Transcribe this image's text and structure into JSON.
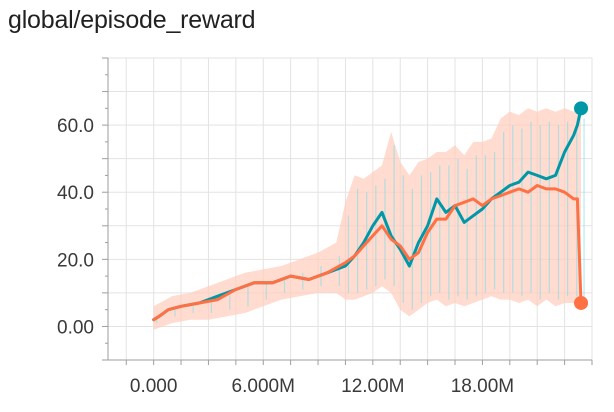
{
  "title": "global/episode_reward",
  "colors": {
    "teal": "#0097a7",
    "orange": "#ff7043",
    "teal_raw": "#80deea",
    "orange_raw": "#ffccbc",
    "grid": "#e3e3e3",
    "axis": "#9e9e9e"
  },
  "chart_data": {
    "type": "line",
    "title": "global/episode_reward",
    "xlabel": "",
    "ylabel": "",
    "xlim": [
      -2500000,
      24000000
    ],
    "ylim": [
      -10,
      80
    ],
    "x_ticks": [
      0,
      6000000,
      12000000,
      18000000
    ],
    "x_tick_labels": [
      "0.000",
      "6.000M",
      "12.00M",
      "18.00M"
    ],
    "y_ticks": [
      0,
      20,
      40,
      60
    ],
    "y_tick_labels": [
      "0.00",
      "20.0",
      "40.0",
      "60.0"
    ],
    "grid": true,
    "legend": "none",
    "series": [
      {
        "color": "#0097a7",
        "raw_color": "#80deea",
        "end_marker": true,
        "x": [
          0,
          300000,
          800000,
          1500000,
          2500000,
          3500000,
          4500000,
          5500000,
          6500000,
          7500000,
          8500000,
          9500000,
          10500000,
          11000000,
          11500000,
          12000000,
          12500000,
          13000000,
          13500000,
          14000000,
          14500000,
          15000000,
          15500000,
          16000000,
          16500000,
          17000000,
          17500000,
          18000000,
          18500000,
          19000000,
          19500000,
          20000000,
          20500000,
          21000000,
          21500000,
          22000000,
          22500000,
          23000000,
          23200000,
          23400000
        ],
        "y": [
          2,
          3,
          5,
          6,
          7,
          9,
          11,
          13,
          13,
          15,
          14,
          16,
          18,
          21,
          25,
          30,
          34,
          27,
          23,
          18,
          25,
          30,
          38,
          34,
          36,
          31,
          33,
          35,
          38,
          40,
          42,
          43,
          46,
          45,
          44,
          45,
          52,
          57,
          60,
          65
        ]
      },
      {
        "color": "#ff7043",
        "raw_color": "#ffccbc",
        "end_marker": true,
        "x": [
          0,
          300000,
          800000,
          1500000,
          2500000,
          3500000,
          4500000,
          5500000,
          6500000,
          7500000,
          8500000,
          9500000,
          10500000,
          11000000,
          11500000,
          12000000,
          12500000,
          13000000,
          13500000,
          14000000,
          14500000,
          15000000,
          15500000,
          16000000,
          16500000,
          17000000,
          17500000,
          18000000,
          18500000,
          19000000,
          19500000,
          20000000,
          20500000,
          21000000,
          21500000,
          22000000,
          22500000,
          23000000,
          23200000,
          23400000
        ],
        "y": [
          2,
          3,
          5,
          6,
          7,
          8,
          11,
          13,
          13,
          15,
          14,
          16,
          19,
          21,
          24,
          27,
          30,
          26,
          24,
          20,
          22,
          28,
          32,
          32,
          36,
          37,
          38,
          36,
          38,
          39,
          40,
          41,
          40,
          42,
          41,
          41,
          40,
          38,
          38,
          7
        ]
      }
    ],
    "raw_band": {
      "x": [
        0,
        1000000,
        2000000,
        3000000,
        4000000,
        5000000,
        6000000,
        7000000,
        8000000,
        9000000,
        10000000,
        10500000,
        11000000,
        11500000,
        12000000,
        12500000,
        13000000,
        13500000,
        14000000,
        14500000,
        15000000,
        15500000,
        16000000,
        16500000,
        17000000,
        17500000,
        18000000,
        18500000,
        19000000,
        19500000,
        20000000,
        20500000,
        21000000,
        21500000,
        22000000,
        22500000,
        23000000,
        23400000
      ],
      "low": [
        -1,
        1,
        2,
        2,
        3,
        4,
        6,
        8,
        9,
        10,
        10,
        8,
        8,
        9,
        10,
        12,
        10,
        5,
        3,
        5,
        7,
        8,
        6,
        7,
        6,
        7,
        8,
        9,
        8,
        8,
        7,
        8,
        6,
        8,
        6,
        7,
        7,
        5
      ],
      "high": [
        6,
        9,
        10,
        12,
        14,
        16,
        17,
        18,
        20,
        22,
        25,
        37,
        45,
        44,
        46,
        48,
        58,
        49,
        45,
        49,
        50,
        52,
        52,
        54,
        51,
        55,
        55,
        56,
        62,
        64,
        63,
        65,
        64,
        65,
        64,
        65,
        64,
        66
      ]
    }
  }
}
